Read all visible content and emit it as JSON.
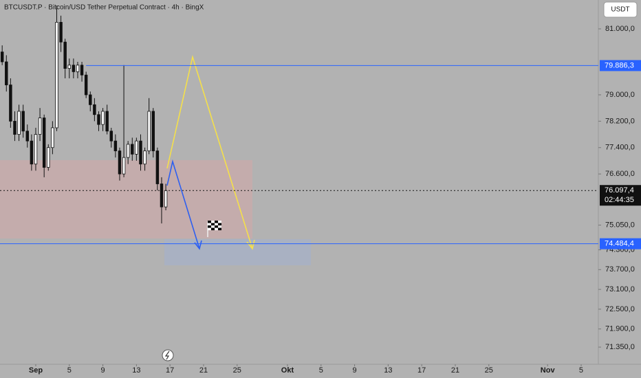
{
  "chart_data": {
    "type": "candlestick",
    "title": "BTCUSDT.P · Bitcoin/USD Tether Perpetual Contract · 4h · BingX",
    "currency": "USDT",
    "up_color": "#ffffff",
    "down_color": "#111111",
    "x": [
      -4,
      -3.5,
      -3,
      -2.5,
      -2,
      -1.5,
      -1,
      -0.5,
      0,
      0.5,
      1,
      1.5,
      2,
      2.5,
      3,
      3.5,
      4,
      4.5,
      5,
      5.5,
      6,
      6.5,
      7,
      7.5,
      8,
      8.5,
      9,
      9.5,
      10,
      10.5,
      11,
      11.5,
      12,
      12.5,
      13,
      13.5,
      14,
      14.5,
      15,
      15.5
    ],
    "open": [
      80300,
      80000,
      79300,
      78200,
      77800,
      78500,
      77900,
      77600,
      76900,
      77800,
      78300,
      76800,
      77400,
      78000,
      81200,
      80600,
      79800,
      79900,
      79700,
      79900,
      79600,
      79000,
      78700,
      78400,
      78100,
      78500,
      77900,
      77600,
      77300,
      76600,
      77100,
      77500,
      77200,
      77600,
      76900,
      77300,
      78500,
      77300,
      76300,
      75600
    ],
    "high": [
      80500,
      80200,
      79500,
      78500,
      78700,
      78700,
      78100,
      77800,
      78000,
      78600,
      78400,
      77500,
      78200,
      81700,
      81400,
      80700,
      80100,
      80100,
      80000,
      80000,
      79700,
      79100,
      78900,
      78500,
      78600,
      78700,
      78000,
      77800,
      77400,
      79900,
      77600,
      77700,
      77700,
      77800,
      77400,
      78900,
      78600,
      77400,
      76500,
      76300
    ],
    "low": [
      79900,
      79100,
      78000,
      77600,
      77600,
      77700,
      77400,
      76700,
      76700,
      77600,
      76500,
      76700,
      77200,
      77900,
      80300,
      79500,
      79500,
      79500,
      79500,
      79400,
      78900,
      78500,
      78200,
      77900,
      77900,
      77800,
      77400,
      77100,
      76400,
      76500,
      76900,
      77000,
      77000,
      76700,
      76700,
      77200,
      77100,
      76100,
      75100,
      75500
    ],
    "close": [
      80000,
      79300,
      78200,
      77800,
      78500,
      77900,
      77600,
      76900,
      77800,
      78300,
      76800,
      77400,
      78000,
      81200,
      80600,
      79800,
      79900,
      79700,
      79900,
      79600,
      79000,
      78700,
      78400,
      78100,
      78500,
      77900,
      77600,
      77300,
      76600,
      77100,
      77500,
      77200,
      77600,
      76900,
      77300,
      78500,
      77300,
      76300,
      75600,
      76097.4
    ],
    "ylim": [
      70830,
      81875
    ],
    "yticks": [
      {
        "value": 81000,
        "label": "81.000,0"
      },
      {
        "value": 79000,
        "label": "79.000,0"
      },
      {
        "value": 78200,
        "label": "78.200,0"
      },
      {
        "value": 77400,
        "label": "77.400,0"
      },
      {
        "value": 76600,
        "label": "76.600,0"
      },
      {
        "value": 75050,
        "label": "75.050,0"
      },
      {
        "value": 74300,
        "label": "74.300,0"
      },
      {
        "value": 73700,
        "label": "73.700,0"
      },
      {
        "value": 73100,
        "label": "73.100,0"
      },
      {
        "value": 72500,
        "label": "72.500,0"
      },
      {
        "value": 71900,
        "label": "71.900,0"
      },
      {
        "value": 71350,
        "label": "71.350,0"
      }
    ],
    "xlim": [
      -4.26,
      67.05
    ],
    "xticks": [
      {
        "value": 0,
        "label": "Sep"
      },
      {
        "value": 4,
        "label": "5"
      },
      {
        "value": 8,
        "label": "9"
      },
      {
        "value": 12,
        "label": "13"
      },
      {
        "value": 16,
        "label": "17"
      },
      {
        "value": 20,
        "label": "21"
      },
      {
        "value": 24,
        "label": "25"
      },
      {
        "value": 30,
        "label": "Okt"
      },
      {
        "value": 34,
        "label": "5"
      },
      {
        "value": 38,
        "label": "9"
      },
      {
        "value": 42,
        "label": "13"
      },
      {
        "value": 46,
        "label": "17"
      },
      {
        "value": 50,
        "label": "21"
      },
      {
        "value": 54,
        "label": "25"
      },
      {
        "value": 61,
        "label": "Nov"
      },
      {
        "value": 65,
        "label": "5"
      }
    ],
    "levels": [
      {
        "value": 79886.3,
        "label": "79.886,3"
      },
      {
        "value": 74484.4,
        "label": "74.484,4"
      }
    ],
    "last_price": {
      "value": 76097.4,
      "label": "76.097,4"
    },
    "countdown": "02:44:35"
  }
}
